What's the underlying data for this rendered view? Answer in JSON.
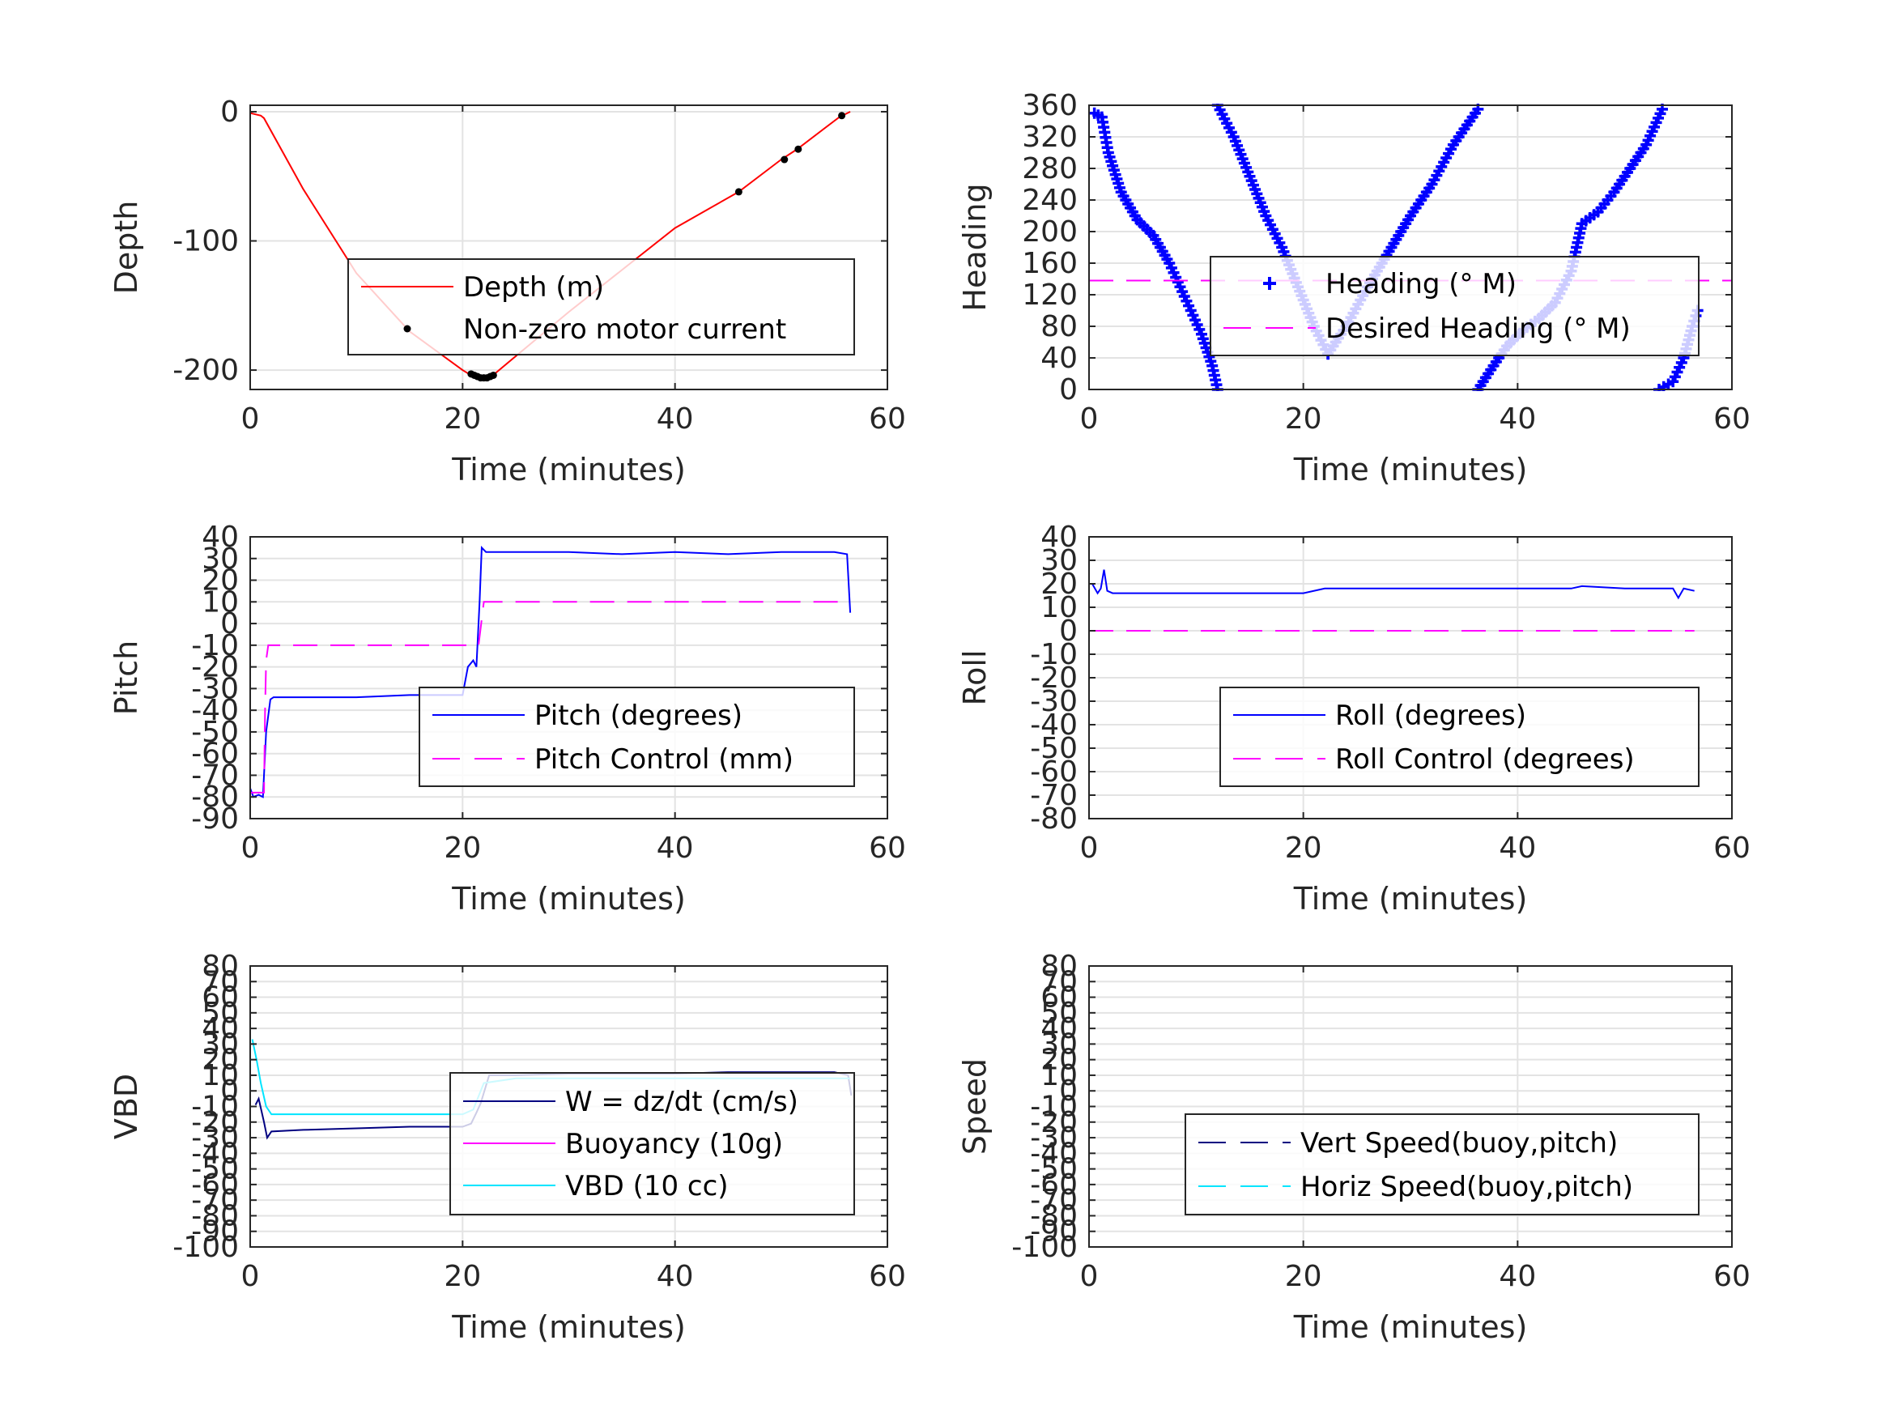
{
  "chart_data": [
    {
      "type": "line",
      "xlabel": "Time (minutes)",
      "ylabel": "Depth",
      "xlim": [
        0,
        60
      ],
      "ylim": [
        -215,
        5
      ],
      "xticks": [
        0,
        20,
        40,
        60
      ],
      "yticks": [
        0,
        -100,
        -200
      ],
      "grid": true,
      "legend_placement": "center-right",
      "legend": [
        {
          "label": "Depth (m)",
          "style": "solid",
          "color": "#ff0000"
        },
        {
          "label": "Non-zero motor current",
          "style": "dot",
          "color": "#000000"
        }
      ],
      "series": [
        {
          "name": "Depth (m)",
          "style": "line",
          "color": "#ff0000",
          "x": [
            0,
            1,
            1.3,
            5,
            10,
            15,
            20,
            21,
            22,
            23,
            30,
            40,
            46,
            50,
            51.5,
            55.5,
            56.5
          ],
          "y": [
            -1,
            -3,
            -5,
            -60,
            -125,
            -170,
            -200,
            -205,
            -206,
            -203,
            -155,
            -90,
            -62,
            -37,
            -29,
            -4,
            0
          ]
        },
        {
          "name": "Non-zero motor current",
          "style": "dots",
          "color": "#000000",
          "x": [
            20.8,
            21.1,
            21.4,
            21.7,
            22.0,
            22.3,
            22.6,
            22.9,
            46,
            50.3,
            51.6,
            55.7
          ],
          "y": [
            -203,
            -204,
            -205,
            -206,
            -206,
            -206,
            -205,
            -204,
            -62,
            -37,
            -29,
            -3
          ]
        }
      ]
    },
    {
      "type": "scatter",
      "xlabel": "Time (minutes)",
      "ylabel": "Heading",
      "xlim": [
        0,
        60
      ],
      "ylim": [
        0,
        360
      ],
      "xticks": [
        0,
        20,
        40,
        60
      ],
      "yticks": [
        0,
        40,
        80,
        120,
        160,
        200,
        240,
        280,
        320,
        360
      ],
      "grid": true,
      "legend_placement": "center-right",
      "legend": [
        {
          "label": "Heading (° M)",
          "style": "plus",
          "color": "#0000ff"
        },
        {
          "label": "Desired Heading (° M)",
          "style": "dashed",
          "color": "#ff00ff"
        }
      ],
      "series": [
        {
          "name": "Heading (° M)",
          "style": "plus",
          "color": "#0000ff",
          "segments": [
            {
              "x": [
                0.5,
                1.2,
                1.8,
                3,
                4.5,
                6,
                7.5,
                8.5,
                9.5,
                10.5,
                11.5,
                12
              ],
              "y": [
                350,
                345,
                300,
                250,
                215,
                195,
                160,
                130,
                100,
                70,
                30,
                0
              ]
            },
            {
              "x": [
                12,
                13.5,
                15,
                16.5,
                18,
                19.5,
                21,
                22.3
              ],
              "y": [
                360,
                320,
                270,
                220,
                180,
                130,
                80,
                45
              ]
            },
            {
              "x": [
                22.3,
                24,
                26,
                28,
                30,
                32,
                34,
                36.3
              ],
              "y": [
                45,
                80,
                130,
                175,
                220,
                260,
                310,
                355
              ]
            },
            {
              "x": [
                36.3,
                37.5,
                39,
                40.5,
                42,
                43.5,
                45,
                46,
                47.5,
                49,
                50.5,
                52,
                53.5
              ],
              "y": [
                0,
                25,
                55,
                75,
                90,
                110,
                150,
                210,
                225,
                250,
                280,
                310,
                355
              ]
            },
            {
              "x": [
                53.2,
                54.5,
                55.5,
                56.3,
                56.8
              ],
              "y": [
                0,
                10,
                40,
                80,
                100
              ]
            }
          ]
        },
        {
          "name": "Desired Heading (° M)",
          "style": "dashed",
          "color": "#ff00ff",
          "x": [
            0,
            60
          ],
          "y": [
            138,
            138
          ]
        }
      ]
    },
    {
      "type": "line",
      "xlabel": "Time (minutes)",
      "ylabel": "Pitch",
      "xlim": [
        0,
        60
      ],
      "ylim": [
        -90,
        40
      ],
      "xticks": [
        0,
        20,
        40,
        60
      ],
      "yticks": [
        40,
        30,
        20,
        10,
        0,
        -10,
        -20,
        -30,
        -40,
        -50,
        -60,
        -70,
        -80,
        -90
      ],
      "grid": true,
      "legend_placement": "lower-right",
      "legend": [
        {
          "label": "Pitch (degrees)",
          "style": "solid",
          "color": "#0000ff"
        },
        {
          "label": "Pitch Control (mm)",
          "style": "dashed",
          "color": "#ff00ff"
        }
      ],
      "series": [
        {
          "name": "Pitch (degrees)",
          "style": "solid",
          "color": "#0000ff",
          "x": [
            0,
            0.3,
            0.8,
            1.2,
            1.5,
            1.9,
            2.2,
            5,
            10,
            15,
            20,
            20.5,
            21,
            21.3,
            21.6,
            21.8,
            22.2,
            25,
            30,
            35,
            40,
            45,
            50,
            55,
            56.2,
            56.5
          ],
          "y": [
            -76,
            -80,
            -79,
            -80,
            -50,
            -35,
            -34,
            -34,
            -34,
            -33,
            -33,
            -20,
            -17,
            -20,
            10,
            35,
            33,
            33,
            33,
            32,
            33,
            32,
            33,
            33,
            32,
            5
          ]
        },
        {
          "name": "Pitch Control (mm)",
          "style": "dashed",
          "color": "#ff00ff",
          "x": [
            0,
            1.3,
            1.4,
            1.5,
            1.7,
            20.5,
            21.5,
            22,
            56.5
          ],
          "y": [
            -78,
            -78,
            -40,
            -17,
            -10,
            -10,
            -10,
            10,
            10
          ]
        }
      ]
    },
    {
      "type": "line",
      "xlabel": "Time (minutes)",
      "ylabel": "Roll",
      "xlim": [
        0,
        60
      ],
      "ylim": [
        -80,
        40
      ],
      "xticks": [
        0,
        20,
        40,
        60
      ],
      "yticks": [
        40,
        30,
        20,
        10,
        0,
        -10,
        -20,
        -30,
        -40,
        -50,
        -60,
        -70,
        -80
      ],
      "grid": true,
      "legend_placement": "lower-right",
      "legend": [
        {
          "label": "Roll (degrees)",
          "style": "solid",
          "color": "#0000ff"
        },
        {
          "label": "Roll Control (degrees)",
          "style": "dashed",
          "color": "#ff00ff"
        }
      ],
      "series": [
        {
          "name": "Roll (degrees)",
          "style": "solid",
          "color": "#0000ff",
          "x": [
            0.3,
            0.8,
            1.1,
            1.4,
            1.7,
            2.2,
            5,
            10,
            15,
            20,
            22,
            25,
            30,
            35,
            40,
            45,
            46,
            50,
            54.5,
            55,
            55.5,
            56.5
          ],
          "y": [
            20,
            16,
            18,
            26,
            17,
            16,
            16,
            16,
            16,
            16,
            18,
            18,
            18,
            18,
            18,
            18,
            19,
            18,
            18,
            14,
            18,
            17
          ]
        },
        {
          "name": "Roll Control (degrees)",
          "style": "dashed",
          "color": "#ff00ff",
          "x": [
            0,
            56.5
          ],
          "y": [
            0,
            0
          ]
        }
      ]
    },
    {
      "type": "line",
      "xlabel": "Time (minutes)",
      "ylabel": "VBD",
      "xlim": [
        0,
        60
      ],
      "ylim": [
        -100,
        80
      ],
      "xticks": [
        0,
        20,
        40,
        60
      ],
      "yticks": [
        80,
        70,
        60,
        50,
        40,
        30,
        20,
        10,
        0,
        -10,
        -20,
        -30,
        -40,
        -50,
        -60,
        -70,
        -80,
        -90,
        -100
      ],
      "ytick_labels": [
        "80",
        "70",
        "60",
        "50",
        "40",
        "30",
        "20",
        "10",
        "0",
        "-10",
        "-20",
        "-30",
        "-40",
        "-50",
        "-60",
        "-70",
        "-80",
        "-90",
        "-100"
      ],
      "grid": true,
      "legend_placement": "lower-right",
      "legend": [
        {
          "label": "W = dz/dt (cm/s)",
          "style": "solid",
          "color": "#000080"
        },
        {
          "label": "Buoyancy (10g)",
          "style": "solid",
          "color": "#ff00ff"
        },
        {
          "label": "VBD (10 cc)",
          "style": "solid",
          "color": "#00e5ff"
        }
      ],
      "series": [
        {
          "name": "W = dz/dt (cm/s)",
          "style": "solid",
          "color": "#000080",
          "x": [
            0.5,
            0.8,
            1.3,
            1.6,
            2,
            5,
            10,
            15,
            20,
            20.8,
            21.3,
            21.7,
            22.5,
            25,
            30,
            35,
            40,
            45,
            50,
            55,
            56.3,
            56.6
          ],
          "y": [
            -9,
            -5,
            -20,
            -30,
            -26,
            -25,
            -24,
            -23,
            -23,
            -21,
            -14,
            -8,
            10,
            10,
            11,
            11,
            11,
            12,
            12,
            12,
            10,
            -3
          ]
        },
        {
          "name": "Buoyancy (10g)",
          "style": "solid",
          "color": "#ff00ff",
          "x": [],
          "y": []
        },
        {
          "name": "VBD (10 cc)",
          "style": "solid",
          "color": "#00e5ff",
          "x": [
            0.2,
            0.6,
            1,
            1.5,
            2,
            20,
            21,
            22,
            25,
            56.5
          ],
          "y": [
            33,
            20,
            5,
            -10,
            -15,
            -15,
            -12,
            5,
            8,
            8
          ]
        }
      ]
    },
    {
      "type": "line",
      "xlabel": "Time (minutes)",
      "ylabel": "Speed",
      "xlim": [
        0,
        60
      ],
      "ylim": [
        -100,
        80
      ],
      "xticks": [
        0,
        20,
        40,
        60
      ],
      "yticks": [
        80,
        70,
        60,
        50,
        40,
        30,
        20,
        10,
        0,
        -10,
        -20,
        -30,
        -40,
        -50,
        -60,
        -70,
        -80,
        -90,
        -100
      ],
      "ytick_labels": [
        "80",
        "70",
        "60",
        "50",
        "40",
        "30",
        "20",
        "10",
        "0",
        "-10",
        "-20",
        "-30",
        "-40",
        "-50",
        "-60",
        "-70",
        "-80",
        "-90",
        "-100"
      ],
      "grid": true,
      "legend_placement": "lower-right",
      "legend": [
        {
          "label": "Vert Speed(buoy,pitch)",
          "style": "dashed",
          "color": "#000080"
        },
        {
          "label": "Horiz Speed(buoy,pitch)",
          "style": "dashed",
          "color": "#00e5ff"
        }
      ],
      "series": [
        {
          "name": "Vert Speed(buoy,pitch)",
          "style": "solid",
          "color": "#0000ff",
          "segments": [
            {
              "x": [
                43.8,
                45.0
              ],
              "y": [
                80,
                80
              ]
            },
            {
              "x": [
                53.6,
                54.8
              ],
              "y": [
                80,
                80
              ]
            }
          ]
        },
        {
          "name": "Horiz Speed(buoy,pitch)",
          "style": "dashed",
          "color": "#00e5ff",
          "x": [],
          "y": []
        }
      ]
    }
  ]
}
